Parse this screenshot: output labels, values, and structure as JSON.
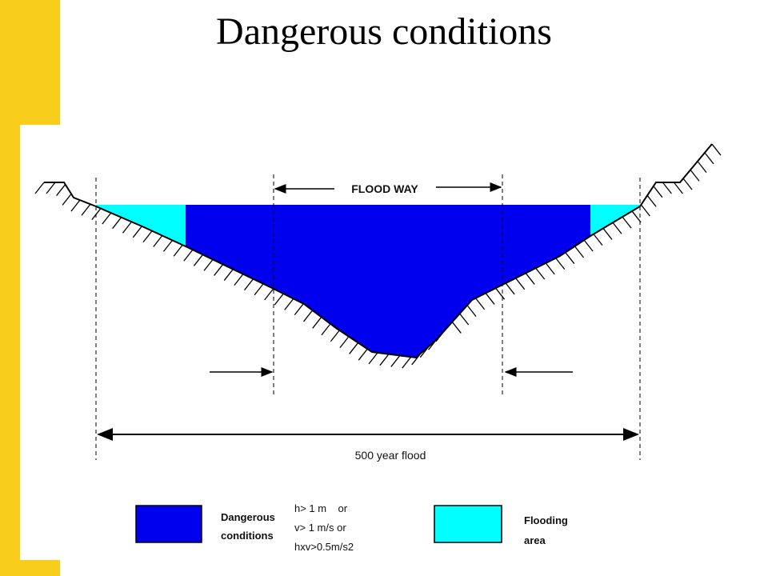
{
  "title": "Dangerous conditions",
  "diagram": {
    "floodway_label": "FLOOD WAY",
    "extent_label": "500 year flood"
  },
  "legend": [
    {
      "label_lines": [
        "Dangerous",
        "conditions"
      ],
      "criteria": [
        "h> 1 m    or",
        "v> 1 m/s or",
        "hxv>0.5m/s2"
      ]
    },
    {
      "label_lines": [
        "Flooding",
        "area"
      ]
    }
  ]
}
